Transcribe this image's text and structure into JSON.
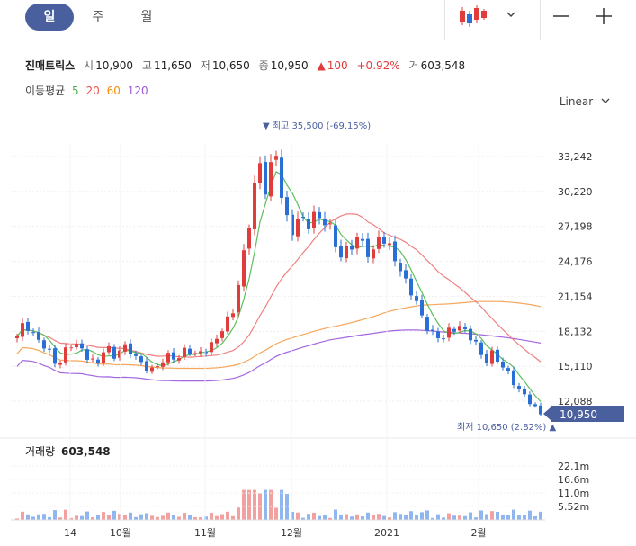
{
  "tabs": [
    {
      "label": "일",
      "active": true
    },
    {
      "label": "주",
      "active": false
    },
    {
      "label": "월",
      "active": false
    }
  ],
  "toolbar": {
    "chart_icon": "candlestick-icon",
    "dropdown_icon": "chevron-down-icon",
    "zoom_out_icon": "minus-icon",
    "zoom_in_icon": "plus-icon"
  },
  "stock": {
    "name": "진매트릭스",
    "open_label": "시",
    "open": "10,900",
    "high_label": "고",
    "high": "11,650",
    "low_label": "저",
    "low": "10,650",
    "close_label": "종",
    "close": "10,950",
    "change_arrow": "▲",
    "change": "100",
    "change_pct": "+0.92%",
    "volume_label": "거",
    "volume": "603,548"
  },
  "moving_average": {
    "label": "이동평균",
    "periods": [
      {
        "label": "5",
        "color": "#4caf50"
      },
      {
        "label": "20",
        "color": "#ef5350"
      },
      {
        "label": "60",
        "color": "#fb8c00"
      },
      {
        "label": "120",
        "color": "#9c5ad8"
      }
    ]
  },
  "scale_mode": "Linear",
  "colors": {
    "up": "#e03c3c",
    "down": "#2a6fd6",
    "ma5": "#5cbf5c",
    "ma20": "#f08080",
    "ma60": "#f5a65b",
    "ma120": "#a368e0",
    "current_price_bg": "#4a5f9e"
  },
  "chart_data": {
    "type": "candlestick",
    "price_ticks": [
      "33,242",
      "30,220",
      "27,198",
      "24,176",
      "21,154",
      "18,132",
      "15,110",
      "12,088"
    ],
    "volume_ticks": [
      "22.1m",
      "16.6m",
      "11.0m",
      "5.52m"
    ],
    "x_ticks": [
      "14",
      "10월",
      "11월",
      "12월",
      "2021",
      "2월"
    ],
    "high_annotation": "▼ 최고 35,500 (-69.15%)",
    "low_annotation": "최저 10,650 (2.82%) ▲",
    "current_price": "10,950",
    "volume_title_label": "거래량",
    "volume_title_value": "603,548",
    "ohlc_path": [
      17500,
      19000,
      18000,
      17000,
      16200,
      15200,
      16500,
      17000,
      16500,
      16000,
      15200,
      16800,
      16000,
      17000,
      16300,
      15600,
      15200,
      14700,
      15400,
      16200,
      15900,
      16500,
      16000,
      16600,
      16800,
      17500,
      19000,
      20500,
      24000,
      28000,
      33500,
      30000,
      34000,
      29000,
      27000,
      27800,
      27000,
      28500,
      28000,
      26500,
      24500,
      25500,
      26000,
      25400,
      24600,
      26800,
      25200,
      24300,
      23000,
      21500,
      19500,
      18500,
      17800,
      17500,
      18200,
      18800,
      17900,
      16800,
      15500,
      16400,
      15200,
      14300,
      13500,
      12600,
      11600,
      10950
    ],
    "price_high": 35500,
    "price_low": 10650,
    "volume_peak_m": 12.3
  }
}
